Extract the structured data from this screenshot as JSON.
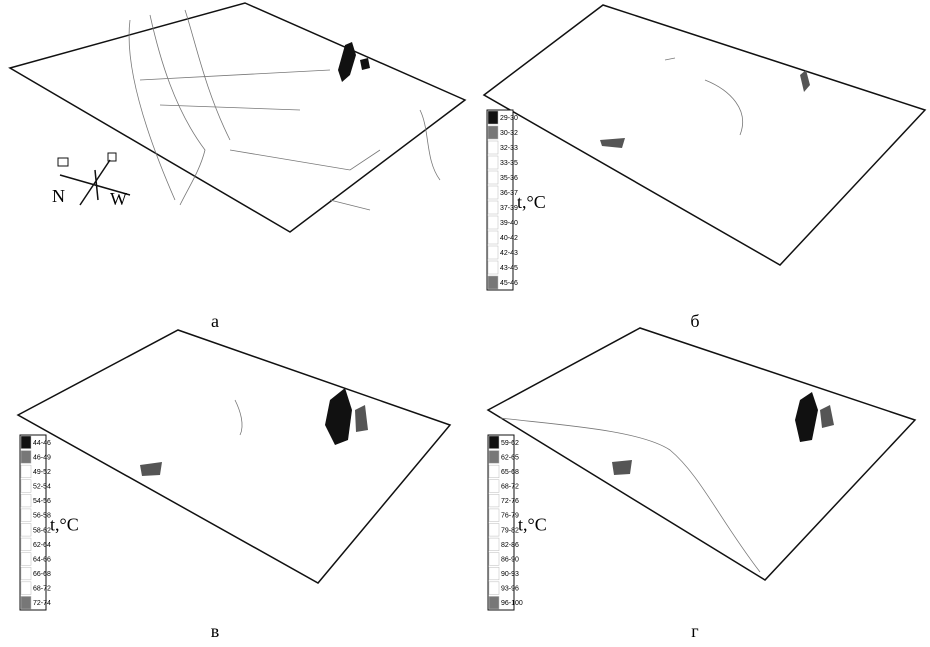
{
  "panels": [
    {
      "label": "а",
      "compass": [
        "N",
        "W"
      ]
    },
    {
      "label": "б",
      "legend": {
        "title": "t,°C",
        "items": [
          "29-30",
          "30-32",
          "32-33",
          "33-35",
          "35-36",
          "36-37",
          "37-39",
          "39-40",
          "40-42",
          "42-43",
          "43-45",
          "45-46"
        ]
      }
    },
    {
      "label": "в",
      "legend": {
        "title": "t,°C",
        "items": [
          "44-46",
          "46-49",
          "49-52",
          "52-54",
          "54-56",
          "56-58",
          "58-62",
          "62-64",
          "64-66",
          "66-68",
          "68-72",
          "72-74"
        ]
      }
    },
    {
      "label": "г",
      "legend": {
        "title": "t,°C",
        "items": [
          "59-62",
          "62-65",
          "65-68",
          "68-72",
          "72-76",
          "76-79",
          "79-82",
          "82-86",
          "86-90",
          "90-93",
          "93-96",
          "96-100"
        ]
      }
    }
  ]
}
